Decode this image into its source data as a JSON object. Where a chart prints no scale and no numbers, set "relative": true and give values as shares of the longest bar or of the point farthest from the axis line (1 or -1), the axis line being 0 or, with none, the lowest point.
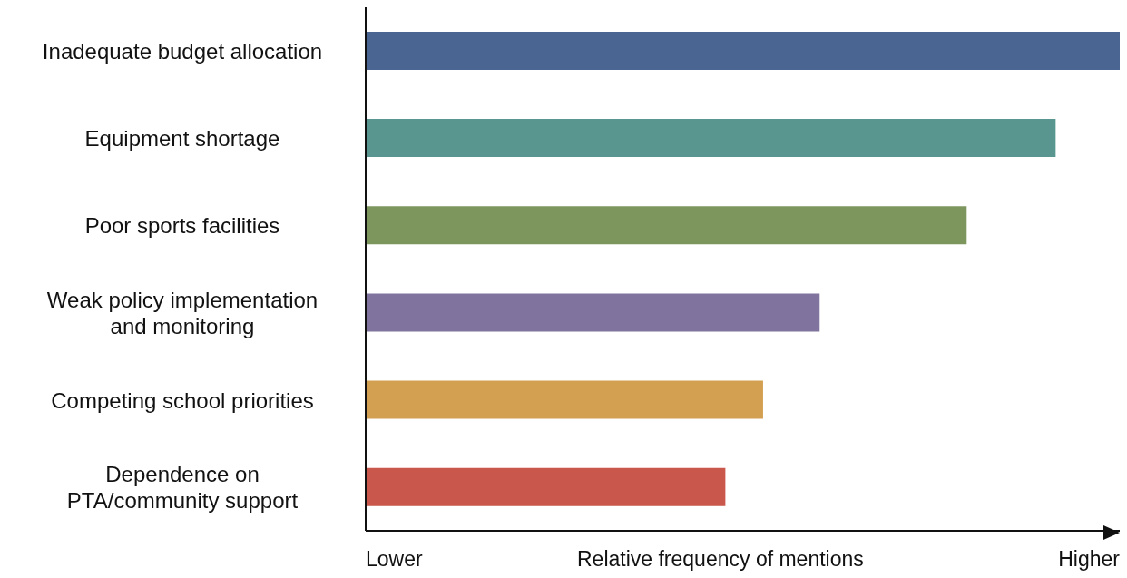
{
  "chart_data": {
    "type": "bar",
    "orientation": "horizontal",
    "relative": true,
    "xlabel": "Relative frequency of mentions",
    "categories": [
      "Inadequate budget allocation",
      "Equipment shortage",
      "Poor sports facilities",
      "Weak policy implementation\nand monitoring",
      "Competing school priorities",
      "Dependence on\nPTA/community support"
    ],
    "values": [
      1,
      0.915,
      0.797,
      0.602,
      0.527,
      0.477
    ],
    "colors": [
      "#4a6592",
      "#5a9690",
      "#7c965e",
      "#80749e",
      "#d39f50",
      "#c9574b"
    ],
    "annotations": [
      "Lower",
      "Higher"
    ],
    "grid": false,
    "legend": false
  }
}
